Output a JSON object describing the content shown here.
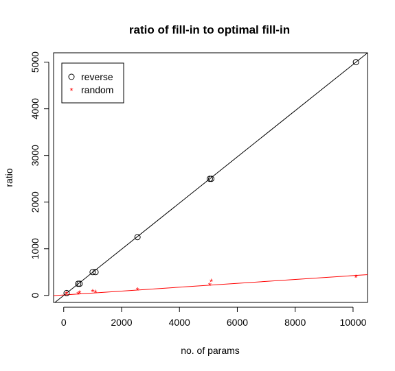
{
  "chart_data": {
    "type": "scatter",
    "title": "ratio of fill-in to optimal fill-in",
    "xlabel": "no. of params",
    "ylabel": "ratio",
    "xlim": [
      -350,
      10500
    ],
    "ylim": [
      -150,
      5200
    ],
    "xticks": [
      "0",
      "2000",
      "4000",
      "6000",
      "8000",
      "10000"
    ],
    "yticks": [
      "0",
      "1000",
      "2000",
      "3000",
      "4000",
      "5000"
    ],
    "grid": false,
    "legend_position": "top-left",
    "series": [
      {
        "name": "reverse",
        "marker": "circle",
        "color": "#000000",
        "x": [
          100,
          500,
          550,
          1000,
          1100,
          2550,
          5050,
          5100,
          10100
        ],
        "y": [
          50,
          250,
          250,
          500,
          500,
          1250,
          2500,
          2500,
          5000
        ],
        "fit_line": {
          "intercept": 0,
          "slope": 0.495
        }
      },
      {
        "name": "random",
        "marker": "asterisk",
        "color": "#ff0000",
        "x": [
          100,
          500,
          550,
          1000,
          1100,
          2550,
          5050,
          5100,
          10100
        ],
        "y": [
          35,
          30,
          45,
          75,
          65,
          115,
          220,
          300,
          390
        ],
        "fit_line": {
          "intercept": 10,
          "slope": 0.0415
        }
      }
    ]
  }
}
